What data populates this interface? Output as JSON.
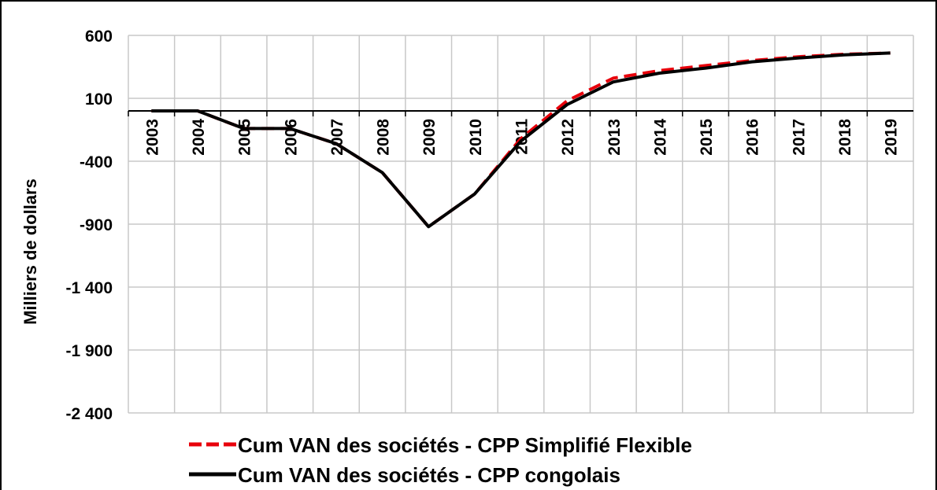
{
  "chart_data": {
    "type": "line",
    "ylabel": "Milliers de dollars",
    "categories": [
      "2003",
      "2004",
      "2005",
      "2006",
      "2007",
      "2008",
      "2009",
      "2010",
      "2011",
      "2012",
      "2013",
      "2014",
      "2015",
      "2016",
      "2017",
      "2018",
      "2019"
    ],
    "series": [
      {
        "name": "Cum VAN des sociétés - CPP Simplifié Flexible",
        "color": "#e8000b",
        "dash": true,
        "values": [
          0,
          0,
          -140,
          -140,
          -260,
          -490,
          -920,
          -660,
          -220,
          80,
          260,
          320,
          360,
          400,
          430,
          450,
          460
        ]
      },
      {
        "name": "Cum VAN des sociétés - CPP congolais",
        "color": "#000000",
        "dash": false,
        "values": [
          0,
          0,
          -140,
          -140,
          -260,
          -490,
          -920,
          -660,
          -240,
          50,
          230,
          300,
          340,
          390,
          420,
          445,
          460
        ]
      }
    ],
    "ylim": [
      -2400,
      600
    ],
    "yticks": [
      600,
      100,
      -400,
      -900,
      {
        "value": -1400,
        "label": "-1 400"
      },
      {
        "value": -1900,
        "label": "-1 900"
      },
      {
        "value": -2400,
        "label": "-2 400"
      }
    ],
    "grid": true
  }
}
